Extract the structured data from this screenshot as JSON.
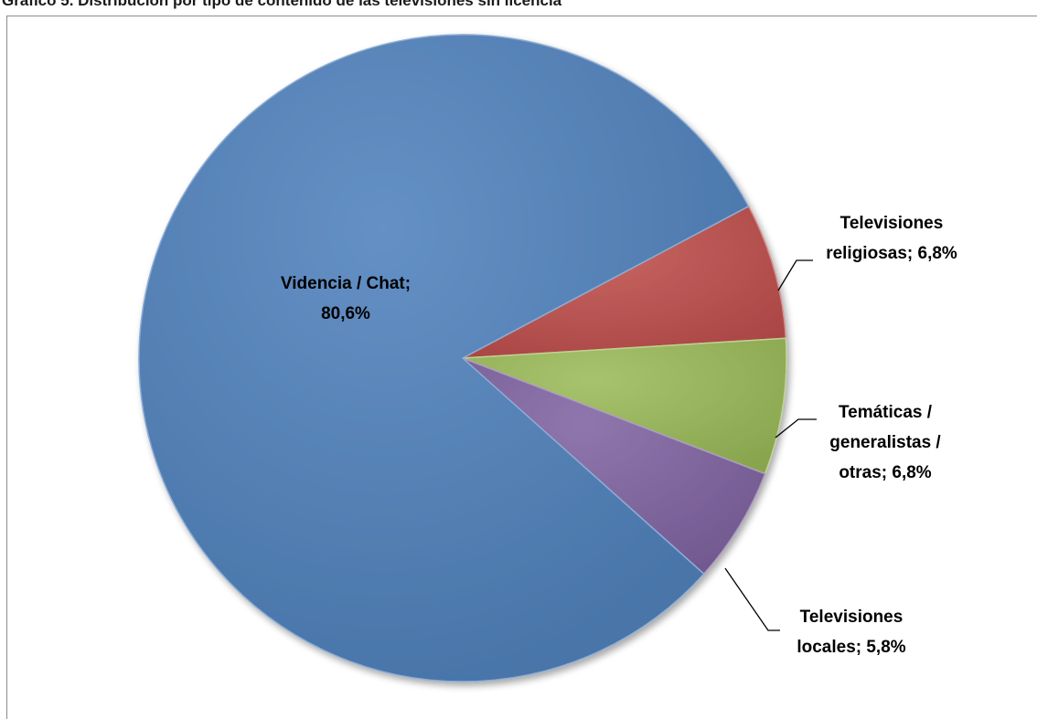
{
  "title": "Gráfico 5. Distribución por tipo de contenido de las televisiones sin licencia",
  "chart_data": {
    "type": "pie",
    "title": "Gráfico 5. Distribución por tipo de contenido de las televisiones sin licencia",
    "slices": [
      {
        "label_lines": [
          "Televisiones",
          "religiosas; 6,8%"
        ],
        "value": 6.8,
        "color": "#c0504d"
      },
      {
        "label_lines": [
          "Temáticas /",
          "generalistas /",
          "otras; 6,8%"
        ],
        "value": 6.8,
        "color": "#9bbb59"
      },
      {
        "label_lines": [
          "Televisiones",
          "locales; 5,8%"
        ],
        "value": 5.8,
        "color": "#8064a2"
      },
      {
        "label_lines": [
          "Videncia / Chat;",
          "80,6%"
        ],
        "value": 80.6,
        "color": "#4f81bd"
      }
    ],
    "legend": "none",
    "data_labels": "outside with leader lines"
  }
}
